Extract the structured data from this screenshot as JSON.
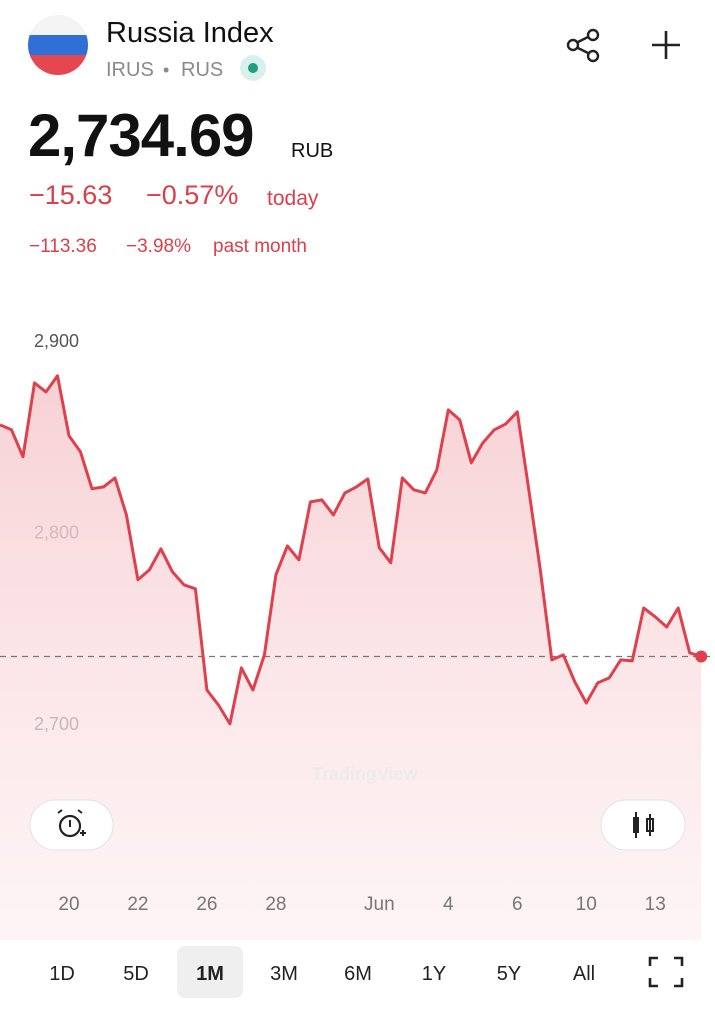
{
  "header": {
    "title": "Russia Index",
    "symbol": "IRUS",
    "separator": "•",
    "exchange": "RUS"
  },
  "price": {
    "value": "2,734.69",
    "currency": "RUB"
  },
  "change_today": {
    "absolute": "−15.63",
    "percent": "−0.57%",
    "period": "today"
  },
  "change_month": {
    "absolute": "−113.36",
    "percent": "−3.98%",
    "period": "past month"
  },
  "watermark": "TradingView",
  "chart_data": {
    "type": "line",
    "color": "#e0404c",
    "values": [
      2855.6,
      2853.0,
      2838.9,
      2877.5,
      2872.8,
      2881.2,
      2849.9,
      2841.5,
      2822.2,
      2823.2,
      2827.9,
      2808.6,
      2774.7,
      2779.9,
      2790.9,
      2778.9,
      2772.1,
      2770.0,
      2717.2,
      2709.4,
      2699.5,
      2728.7,
      2717.2,
      2735.5,
      2777.3,
      2792.4,
      2785.1,
      2815.4,
      2816.4,
      2808.6,
      2820.1,
      2823.2,
      2827.4,
      2791.4,
      2783.6,
      2827.9,
      2821.7,
      2820.1,
      2832.1,
      2863.4,
      2858.2,
      2835.8,
      2846.2,
      2853.0,
      2856.1,
      2862.4,
      2821.7,
      2779.9,
      2732.9,
      2735.5,
      2721.4,
      2710.4,
      2720.9,
      2723.5,
      2732.9,
      2732.4,
      2760.0,
      2755.4,
      2750.1,
      2760.0,
      2736.6,
      2734.69
    ],
    "xlim": [
      0,
      62.2
    ],
    "ylim": [
      2618,
      2926
    ],
    "yticks": [
      {
        "value": 2900,
        "label": "2,900"
      },
      {
        "value": 2800,
        "label": "2,800"
      },
      {
        "value": 2700,
        "label": "2,700"
      }
    ],
    "xticks": [
      {
        "value": 6,
        "label": "20"
      },
      {
        "value": 12,
        "label": "22"
      },
      {
        "value": 18,
        "label": "26"
      },
      {
        "value": 24,
        "label": "28"
      },
      {
        "value": 33,
        "label": "Jun"
      },
      {
        "value": 39,
        "label": "4"
      },
      {
        "value": 45,
        "label": "6"
      },
      {
        "value": 51,
        "label": "10"
      },
      {
        "value": 57,
        "label": "13"
      }
    ]
  },
  "timeframes": {
    "options": [
      "1D",
      "5D",
      "1M",
      "3M",
      "6M",
      "1Y",
      "5Y",
      "All"
    ],
    "selected": 2
  }
}
